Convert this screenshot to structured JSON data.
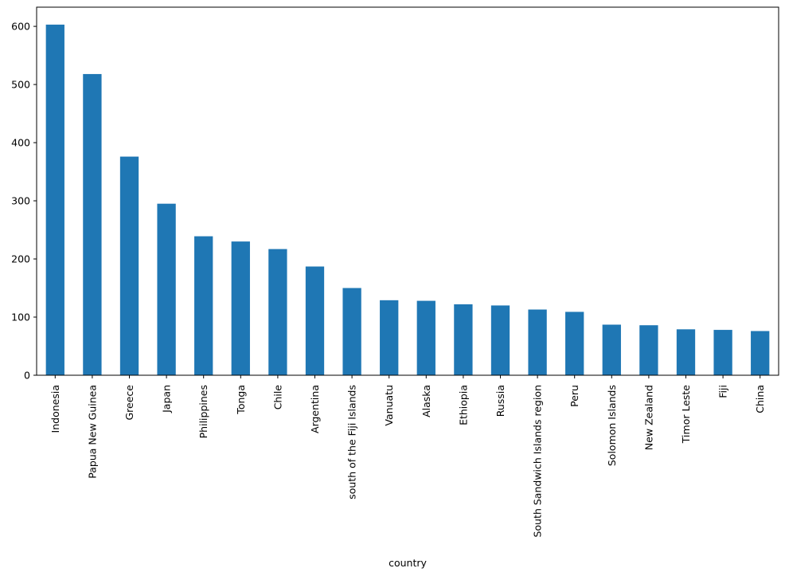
{
  "chart_data": {
    "type": "bar",
    "title": "",
    "xlabel": "country",
    "ylabel": "",
    "ylim": [
      0,
      633
    ],
    "yticks": [
      0,
      100,
      200,
      300,
      400,
      500,
      600
    ],
    "grid": false,
    "legend": "none",
    "bar_color": "#1f77b4",
    "categories": [
      "Indonesia",
      "Papua New Guinea",
      "Greece",
      "Japan",
      "Philippines",
      "Tonga",
      "Chile",
      "Argentina",
      "south of the Fiji Islands",
      "Vanuatu",
      "Alaska",
      "Ethiopia",
      "Russia",
      "South Sandwich Islands region",
      "Peru",
      "Solomon Islands",
      "New Zealand",
      "Timor Leste",
      "Fiji",
      "China"
    ],
    "values": [
      603,
      518,
      376,
      295,
      239,
      230,
      217,
      187,
      150,
      129,
      128,
      122,
      120,
      113,
      109,
      87,
      86,
      79,
      78,
      76
    ]
  }
}
